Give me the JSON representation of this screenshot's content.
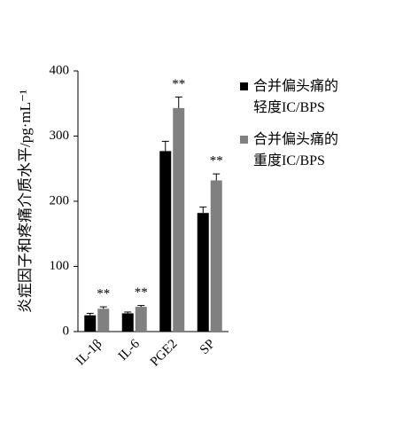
{
  "chart_data": {
    "type": "bar",
    "y_label": "炎症因子和疼痛介质水平/pg·mL⁻¹",
    "categories": [
      "IL-1β",
      "IL-6",
      "PGE2",
      "SP"
    ],
    "series": [
      {
        "name": "合并偏头痛的轻度IC/BPS",
        "color": "#000000",
        "values": [
          25,
          28,
          277,
          182
        ],
        "errors": [
          3,
          2,
          15,
          9
        ]
      },
      {
        "name": "合并偏头痛的重度IC/BPS",
        "color": "#808080",
        "values": [
          35,
          38,
          343,
          232
        ],
        "errors": [
          3,
          2,
          17,
          10
        ]
      }
    ],
    "annotations": [
      "**",
      "**",
      "**",
      "**"
    ],
    "ylim": [
      0,
      400
    ],
    "yticks": [
      0,
      100,
      200,
      300,
      400
    ]
  }
}
